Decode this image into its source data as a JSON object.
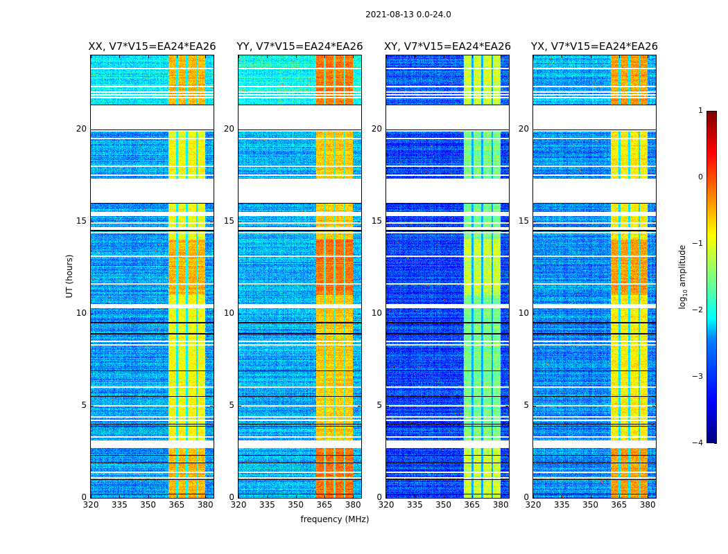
{
  "chart_data": {
    "type": "heatmap",
    "title": "2021-08-13 0.0-24.0",
    "xlabel": "frequency (MHz)",
    "ylabel": "UT (hours)",
    "xlim": [
      320,
      384.3
    ],
    "ylim": [
      0,
      24
    ],
    "xticks": [
      320,
      335,
      350,
      365,
      380
    ],
    "yticks": [
      0,
      5,
      10,
      15,
      20
    ],
    "band_mhz": [
      360.6,
      380.0
    ],
    "channel_edges_mhz": [
      365.3,
      370.4,
      375.5
    ],
    "flagged_gaps_hours": [
      [
        20.0,
        21.3
      ],
      [
        16.0,
        17.3
      ],
      [
        2.7,
        3.1
      ],
      [
        10.3,
        10.5
      ],
      [
        14.55,
        14.7
      ],
      [
        15.3,
        15.5
      ]
    ],
    "flagged_lines_hours": [
      23.3,
      22.3,
      22.0,
      21.85,
      21.7,
      19.9,
      19.5,
      18.0,
      17.5,
      14.9,
      14.4,
      13.1,
      11.6,
      8.5,
      8.3,
      6.0,
      5.0,
      4.4,
      4.2,
      3.3,
      1.4,
      1.1
    ],
    "black_lines_hours": [
      9.5,
      8.9,
      6.9,
      6.0,
      5.5,
      4.0,
      3.9,
      2.3,
      1.9,
      1.0,
      0.2,
      14.5,
      16.0,
      19.95,
      21.3
    ],
    "panels": [
      {
        "title": "XX, V7*V15=EA24*EA26",
        "background_level": -2.6,
        "band_level": -0.9,
        "top_background_level": -2.2
      },
      {
        "title": "YY, V7*V15=EA24*EA26",
        "background_level": -2.5,
        "band_level": -0.6,
        "top_background_level": -2.05
      },
      {
        "title": "XY, V7*V15=EA24*EA26",
        "background_level": -3.0,
        "band_level": -1.5,
        "top_background_level": -2.9
      },
      {
        "title": "YX, V7*V15=EA24*EA26",
        "background_level": -2.7,
        "band_level": -0.8,
        "top_background_level": -2.5
      }
    ],
    "colorbar": {
      "label_prefix": "log",
      "label_sub": "10",
      "label_suffix": " amplitude",
      "min": -4,
      "max": 1,
      "ticks": [
        1,
        0,
        -1,
        -2,
        -3,
        -4
      ],
      "tick_labels": [
        "1",
        "0",
        "−1",
        "−2",
        "−3",
        "−4"
      ],
      "colormap": "jet"
    }
  }
}
